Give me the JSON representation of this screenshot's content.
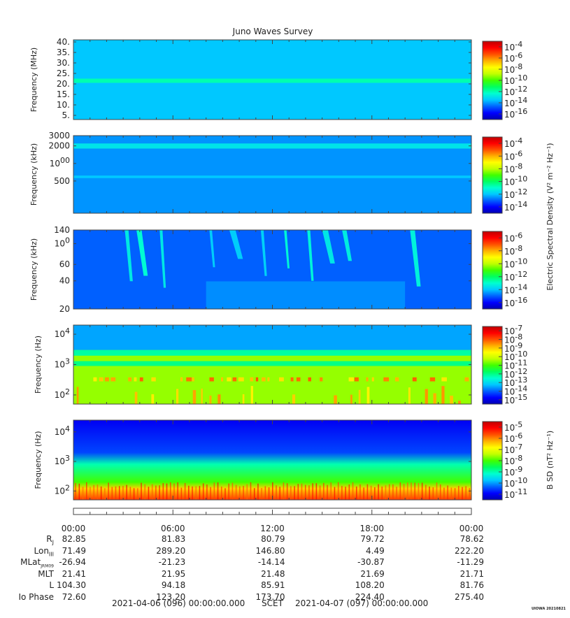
{
  "title": "Juno Waves Survey",
  "colors": {
    "colormap": [
      "#0000b0",
      "#0000ff",
      "#0060ff",
      "#00c8ff",
      "#00ffd0",
      "#00ff60",
      "#40ff00",
      "#c0ff00",
      "#ffff00",
      "#ffb000",
      "#ff5000",
      "#ff0000",
      "#c00000"
    ],
    "frame": "#444444"
  },
  "chart_data": [
    {
      "type": "heatmap",
      "ylabel": "Frequency (MHz)",
      "yscale": "linear",
      "ylim": [
        3,
        41
      ],
      "yticks": [
        "40.",
        "35.",
        "30.",
        "25.",
        "20.",
        "15.",
        "10.",
        "5."
      ],
      "ytick_values": [
        40,
        35,
        30,
        25,
        20,
        15,
        10,
        5
      ],
      "colorbar_labels": [
        "10-4",
        "10-6",
        "10-8",
        "10-10",
        "10-12",
        "10-14",
        "10-16"
      ],
      "colorbar_exponents": [
        -4,
        -6,
        -8,
        -10,
        -12,
        -14,
        -16
      ],
      "colorbar_range": [
        -17,
        -3
      ],
      "features": [
        {
          "kind": "background",
          "level": -13.5
        },
        {
          "kind": "band",
          "yfrom": 20.5,
          "yto": 22.5,
          "level": -12
        }
      ]
    },
    {
      "type": "heatmap",
      "ylabel": "Frequency (kHz)",
      "yscale": "log",
      "ylim": [
        140,
        3000
      ],
      "yticks": [
        "3000",
        "2000",
        "1000",
        "500"
      ],
      "ytick_values": [
        3000,
        2000,
        1000,
        500
      ],
      "colorbar_labels": [
        "10-4",
        "10-6",
        "10-8",
        "10-10",
        "10-12",
        "10-14"
      ],
      "colorbar_exponents": [
        -4,
        -6,
        -8,
        -10,
        -12,
        -14
      ],
      "colorbar_range": [
        -15,
        -3
      ],
      "features": [
        {
          "kind": "background",
          "level": -12.5
        },
        {
          "kind": "band",
          "yfrom": 1800,
          "yto": 2200,
          "level": -11.5
        },
        {
          "kind": "band",
          "yfrom": 560,
          "yto": 620,
          "level": -12
        }
      ]
    },
    {
      "type": "heatmap",
      "ylabel": "Frequency (kHz)",
      "yscale": "log",
      "ylim": [
        20,
        140
      ],
      "yticks": [
        "140",
        "100",
        "60",
        "40",
        "20"
      ],
      "ytick_values": [
        140,
        100,
        60,
        40,
        20
      ],
      "colorbar_labels": [
        "10-6",
        "10-8",
        "10-10",
        "10-12",
        "10-14",
        "10-16"
      ],
      "colorbar_exponents": [
        -6,
        -8,
        -10,
        -12,
        -14,
        -16
      ],
      "colorbar_range": [
        -17,
        -5
      ],
      "features": [
        {
          "kind": "background",
          "level": -15
        },
        {
          "kind": "bursts",
          "hours": [
            3.1,
            3.8,
            5.2,
            8.2,
            9.4,
            11.3,
            12.7,
            14.1,
            15.0,
            16.2,
            20.3
          ],
          "level": -13
        }
      ]
    },
    {
      "type": "heatmap",
      "ylabel": "Frequency (Hz)",
      "yscale": "log",
      "ylim": [
        50,
        20000
      ],
      "yticks": [
        "10^4",
        "10^3",
        "10^2"
      ],
      "ytick_values": [
        10000,
        1000,
        100
      ],
      "colorbar_labels": [
        "10-7",
        "10-8",
        "10-9",
        "10-10",
        "10-11",
        "10-12",
        "10-13",
        "10-14",
        "10-15"
      ],
      "colorbar_exponents": [
        -7,
        -8,
        -9,
        -10,
        -11,
        -12,
        -13,
        -14,
        -15
      ],
      "colorbar_range": [
        -15.5,
        -6.5
      ],
      "features": [
        {
          "kind": "background-low",
          "level": -10.5
        },
        {
          "kind": "upper",
          "yfrom": 3000,
          "level": -13.5
        },
        {
          "kind": "band",
          "yfrom": 900,
          "yto": 1300,
          "level": -12
        },
        {
          "kind": "chorus",
          "yfrom": 280,
          "yto": 380,
          "level": -8
        }
      ]
    },
    {
      "type": "heatmap",
      "ylabel": "Frequency (Hz)",
      "yscale": "log",
      "ylim": [
        50,
        25000
      ],
      "yticks": [
        "10^4",
        "10^3",
        "10^2"
      ],
      "ytick_values": [
        10000,
        1000,
        100
      ],
      "colorbar_labels": [
        "10-5",
        "10-6",
        "10-7",
        "10-8",
        "10-9",
        "10-10",
        "10-11"
      ],
      "colorbar_exponents": [
        -5,
        -6,
        -7,
        -8,
        -9,
        -10,
        -11
      ],
      "colorbar_range": [
        -11.5,
        -4.5
      ],
      "features": [
        {
          "kind": "gradient",
          "levels": [
            [
              25000,
              -11
            ],
            [
              2000,
              -10.5
            ],
            [
              800,
              -9
            ],
            [
              200,
              -8
            ],
            [
              120,
              -6.5
            ],
            [
              50,
              -5.5
            ]
          ]
        }
      ]
    }
  ],
  "colorbar_title_mid": "Electric Spectral Density (V² m⁻² Hz⁻¹)",
  "colorbar_title_bottom": "B SD (nT² Hz⁻¹)",
  "x_axis": {
    "ticks": [
      "00:00",
      "06:00",
      "12:00",
      "18:00",
      "00:00"
    ],
    "tick_hours": [
      0,
      6,
      12,
      18,
      24
    ],
    "xlim_hours": [
      0,
      24
    ]
  },
  "ephemeris": [
    {
      "label": "R",
      "sub": "J",
      "values": [
        "82.85",
        "81.83",
        "80.79",
        "79.72",
        "78.62"
      ]
    },
    {
      "label": "Lon",
      "sub": "III",
      "values": [
        "71.49",
        "289.20",
        "146.80",
        "4.49",
        "222.20"
      ]
    },
    {
      "label": "MLat",
      "sub": "JRM09",
      "values": [
        "-26.94",
        "-21.23",
        "-14.14",
        "-30.87",
        "-11.29"
      ]
    },
    {
      "label": "MLT",
      "sub": "",
      "values": [
        "21.41",
        "21.95",
        "21.48",
        "21.69",
        "21.71"
      ]
    },
    {
      "label": "L",
      "sub": "",
      "values": [
        "104.30",
        "94.18",
        "85.91",
        "108.20",
        "81.76"
      ]
    },
    {
      "label": "Io Phase",
      "sub": "",
      "values": [
        "72.60",
        "123.20",
        "173.70",
        "224.40",
        "275.40"
      ]
    }
  ],
  "footer": {
    "start": "2021-04-06 (096) 00:00:00.000",
    "scet": "SCET",
    "end": "2021-04-07 (097) 00:00:00.000"
  },
  "credit": "UIOWA 20210821"
}
